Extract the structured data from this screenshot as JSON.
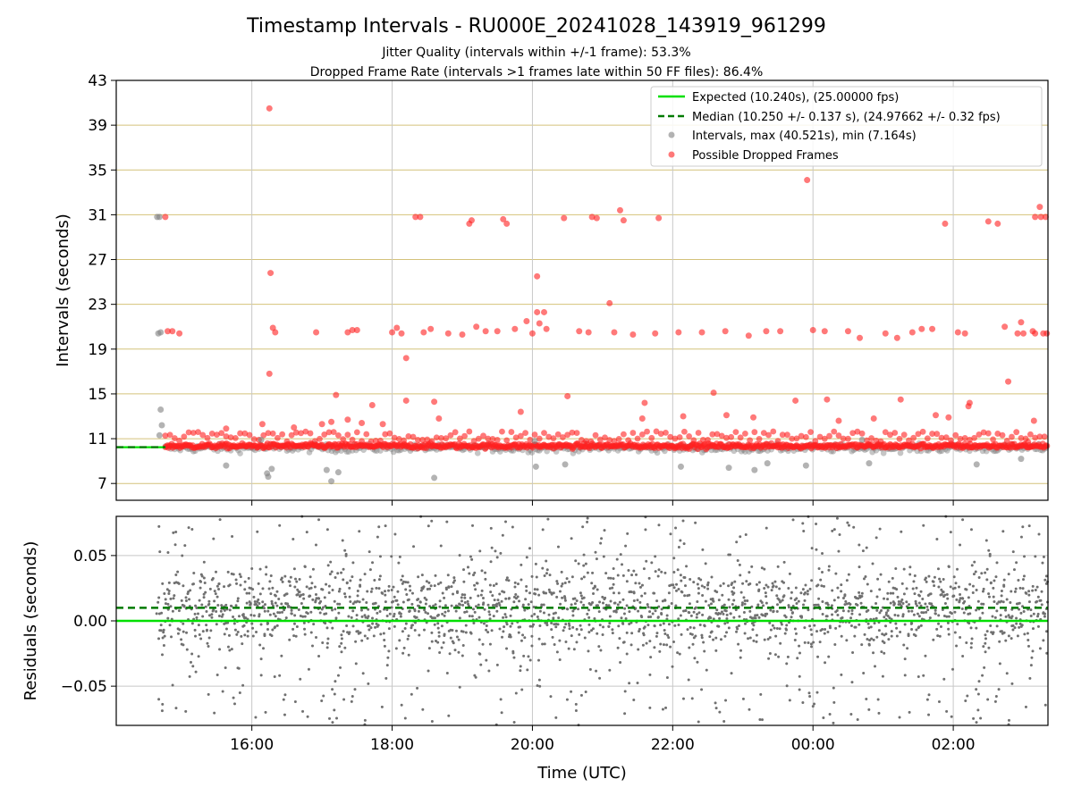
{
  "chart_data": {
    "type": "scatter",
    "title": "Timestamp Intervals - RU000E_20241028_143919_961299",
    "subtitle_lines": [
      "Jitter Quality (intervals within +/-1 frame): 53.3%",
      "Dropped Frame Rate (intervals >1 frames late within 50 FF files): 86.4%"
    ],
    "xlabel": "Time (UTC)",
    "x_range": [
      "2024-10-28 14:04",
      "2024-10-29 03:21"
    ],
    "x_ticks": [
      "16:00",
      "18:00",
      "20:00",
      "22:00",
      "00:00",
      "02:00"
    ],
    "x_tick_values": [
      "2024-10-28 16:00",
      "2024-10-28 18:00",
      "2024-10-28 20:00",
      "2024-10-28 22:00",
      "2024-10-29 00:00",
      "2024-10-29 02:00"
    ],
    "top_panel": {
      "ylabel": "Intervals (seconds)",
      "ylim": [
        5.5,
        43
      ],
      "y_ticks": [
        7,
        11,
        15,
        19,
        23,
        27,
        31,
        35,
        39,
        43
      ],
      "hlines": [
        {
          "y": 10.24,
          "style": "solid",
          "color": "#00e000"
        },
        {
          "y": 10.25,
          "style": "dashed",
          "color": "#007a00"
        }
      ],
      "legend_placement": "top-right",
      "legend": [
        {
          "label": "Expected (10.240s), (25.00000 fps)",
          "marker": "line",
          "color": "#00e000"
        },
        {
          "label": "Median (10.250 +/- 0.137 s), (24.97662 +/- 0.32 fps)",
          "marker": "dashed",
          "color": "#007a00"
        },
        {
          "label": "Intervals, max (40.521s), min (7.164s)",
          "marker": "dot",
          "color": "#808080"
        },
        {
          "label": "Possible Dropped Frames",
          "marker": "dot",
          "color": "#ff2020"
        }
      ],
      "series": [
        {
          "name": "Intervals, max (40.521s), min (7.164s)",
          "color": "#808080",
          "points": [
            [
              "2024-10-28 14:39",
              30.8
            ],
            [
              "2024-10-28 14:41",
              30.8
            ],
            [
              "2024-10-28 14:40",
              20.4
            ],
            [
              "2024-10-28 14:42",
              20.5
            ],
            [
              "2024-10-28 14:42",
              13.6
            ],
            [
              "2024-10-28 14:43",
              12.2
            ],
            [
              "2024-10-28 14:41",
              11.3
            ],
            [
              "2024-10-28 15:38",
              8.6
            ],
            [
              "2024-10-28 16:13",
              7.9
            ],
            [
              "2024-10-28 16:14",
              7.6
            ],
            [
              "2024-10-28 16:17",
              8.3
            ],
            [
              "2024-10-28 17:04",
              8.2
            ],
            [
              "2024-10-28 17:08",
              7.2
            ],
            [
              "2024-10-28 17:14",
              8.0
            ],
            [
              "2024-10-28 18:36",
              7.5
            ],
            [
              "2024-10-28 20:03",
              8.5
            ],
            [
              "2024-10-28 20:28",
              8.7
            ],
            [
              "2024-10-28 22:07",
              8.5
            ],
            [
              "2024-10-28 22:48",
              8.4
            ],
            [
              "2024-10-28 23:10",
              8.2
            ],
            [
              "2024-10-28 23:21",
              8.8
            ],
            [
              "2024-10-28 23:54",
              8.6
            ],
            [
              "2024-10-29 00:48",
              8.8
            ],
            [
              "2024-10-29 02:20",
              8.7
            ],
            [
              "2024-10-29 02:58",
              9.2
            ],
            [
              "2024-10-29 00:42",
              10.9
            ],
            [
              "2024-10-28 20:02",
              10.8
            ],
            [
              "2024-10-28 16:08",
              10.9
            ]
          ]
        },
        {
          "name": "Possible Dropped Frames",
          "color": "#ff2020",
          "points": [
            [
              "2024-10-28 14:46",
              30.8
            ],
            [
              "2024-10-28 14:48",
              20.6
            ],
            [
              "2024-10-28 14:52",
              20.6
            ],
            [
              "2024-10-28 14:58",
              20.4
            ],
            [
              "2024-10-28 16:15",
              40.5
            ],
            [
              "2024-10-28 16:16",
              25.8
            ],
            [
              "2024-10-28 16:18",
              20.9
            ],
            [
              "2024-10-28 16:20",
              20.5
            ],
            [
              "2024-10-28 16:15",
              16.8
            ],
            [
              "2024-10-28 16:09",
              12.3
            ],
            [
              "2024-10-28 16:36",
              12.0
            ],
            [
              "2024-10-28 15:38",
              11.9
            ],
            [
              "2024-10-28 16:55",
              20.5
            ],
            [
              "2024-10-28 17:22",
              20.5
            ],
            [
              "2024-10-28 17:26",
              20.7
            ],
            [
              "2024-10-28 17:30",
              20.7
            ],
            [
              "2024-10-28 17:12",
              14.9
            ],
            [
              "2024-10-28 17:08",
              12.5
            ],
            [
              "2024-10-28 17:00",
              12.3
            ],
            [
              "2024-10-28 17:22",
              12.7
            ],
            [
              "2024-10-28 17:34",
              12.4
            ],
            [
              "2024-10-28 17:43",
              14.0
            ],
            [
              "2024-10-28 17:52",
              12.3
            ],
            [
              "2024-10-28 18:00",
              20.5
            ],
            [
              "2024-10-28 18:04",
              20.9
            ],
            [
              "2024-10-28 18:08",
              20.4
            ],
            [
              "2024-10-28 18:12",
              18.2
            ],
            [
              "2024-10-28 18:12",
              14.4
            ],
            [
              "2024-10-28 18:20",
              30.8
            ],
            [
              "2024-10-28 18:24",
              30.8
            ],
            [
              "2024-10-28 18:27",
              20.5
            ],
            [
              "2024-10-28 18:33",
              20.8
            ],
            [
              "2024-10-28 18:36",
              14.3
            ],
            [
              "2024-10-28 18:40",
              12.8
            ],
            [
              "2024-10-28 18:48",
              20.4
            ],
            [
              "2024-10-28 19:00",
              20.3
            ],
            [
              "2024-10-28 19:12",
              21.0
            ],
            [
              "2024-10-28 19:06",
              30.2
            ],
            [
              "2024-10-28 19:08",
              30.5
            ],
            [
              "2024-10-28 19:20",
              20.6
            ],
            [
              "2024-10-28 19:30",
              20.6
            ],
            [
              "2024-10-28 19:35",
              30.6
            ],
            [
              "2024-10-28 19:38",
              30.2
            ],
            [
              "2024-10-28 19:45",
              20.8
            ],
            [
              "2024-10-28 19:50",
              13.4
            ],
            [
              "2024-10-28 19:55",
              21.5
            ],
            [
              "2024-10-28 20:00",
              20.4
            ],
            [
              "2024-10-28 20:04",
              25.5
            ],
            [
              "2024-10-28 20:04",
              22.3
            ],
            [
              "2024-10-28 20:10",
              22.3
            ],
            [
              "2024-10-28 20:06",
              21.3
            ],
            [
              "2024-10-28 20:12",
              20.8
            ],
            [
              "2024-10-28 20:27",
              30.7
            ],
            [
              "2024-10-28 20:30",
              14.8
            ],
            [
              "2024-10-28 20:40",
              20.6
            ],
            [
              "2024-10-28 20:48",
              20.5
            ],
            [
              "2024-10-28 20:51",
              30.8
            ],
            [
              "2024-10-28 20:55",
              30.7
            ],
            [
              "2024-10-28 21:06",
              23.1
            ],
            [
              "2024-10-28 21:15",
              31.4
            ],
            [
              "2024-10-28 21:18",
              30.5
            ],
            [
              "2024-10-28 21:10",
              20.5
            ],
            [
              "2024-10-28 21:26",
              20.3
            ],
            [
              "2024-10-28 21:34",
              12.8
            ],
            [
              "2024-10-28 21:36",
              14.2
            ],
            [
              "2024-10-28 21:45",
              20.4
            ],
            [
              "2024-10-28 21:48",
              30.7
            ],
            [
              "2024-10-28 22:05",
              20.5
            ],
            [
              "2024-10-28 22:09",
              13.0
            ],
            [
              "2024-10-28 22:25",
              20.5
            ],
            [
              "2024-10-28 22:35",
              15.1
            ],
            [
              "2024-10-28 22:45",
              20.6
            ],
            [
              "2024-10-28 22:46",
              13.1
            ],
            [
              "2024-10-28 23:05",
              20.2
            ],
            [
              "2024-10-28 23:09",
              12.9
            ],
            [
              "2024-10-28 23:20",
              20.6
            ],
            [
              "2024-10-28 23:32",
              20.6
            ],
            [
              "2024-10-28 23:45",
              14.4
            ],
            [
              "2024-10-28 23:55",
              34.1
            ],
            [
              "2024-10-29 00:00",
              20.7
            ],
            [
              "2024-10-29 00:10",
              20.6
            ],
            [
              "2024-10-29 00:12",
              14.5
            ],
            [
              "2024-10-29 00:22",
              12.6
            ],
            [
              "2024-10-29 00:30",
              20.6
            ],
            [
              "2024-10-29 00:40",
              20.0
            ],
            [
              "2024-10-29 00:52",
              12.8
            ],
            [
              "2024-10-29 01:02",
              20.4
            ],
            [
              "2024-10-29 01:12",
              20.0
            ],
            [
              "2024-10-29 01:15",
              14.5
            ],
            [
              "2024-10-29 01:25",
              20.5
            ],
            [
              "2024-10-29 01:33",
              20.8
            ],
            [
              "2024-10-29 01:42",
              20.8
            ],
            [
              "2024-10-29 01:45",
              13.1
            ],
            [
              "2024-10-29 01:53",
              30.2
            ],
            [
              "2024-10-29 01:56",
              12.9
            ],
            [
              "2024-10-29 02:04",
              20.5
            ],
            [
              "2024-10-29 02:10",
              20.4
            ],
            [
              "2024-10-29 02:13",
              13.9
            ],
            [
              "2024-10-29 02:14",
              14.2
            ],
            [
              "2024-10-29 02:30",
              30.4
            ],
            [
              "2024-10-29 02:38",
              30.2
            ],
            [
              "2024-10-29 02:44",
              21.0
            ],
            [
              "2024-10-29 02:47",
              16.1
            ],
            [
              "2024-10-29 02:55",
              20.4
            ],
            [
              "2024-10-29 02:58",
              21.4
            ],
            [
              "2024-10-29 03:00",
              20.4
            ],
            [
              "2024-10-29 03:08",
              20.6
            ],
            [
              "2024-10-29 03:10",
              30.8
            ],
            [
              "2024-10-29 03:14",
              31.7
            ],
            [
              "2024-10-29 03:15",
              30.8
            ],
            [
              "2024-10-29 03:19",
              30.8
            ],
            [
              "2024-10-29 03:20",
              20.4
            ],
            [
              "2024-10-29 03:09",
              12.6
            ],
            [
              "2024-10-29 03:04",
              10.7
            ],
            [
              "2024-10-29 03:10",
              20.4
            ],
            [
              "2024-10-29 03:17",
              20.4
            ]
          ]
        }
      ],
      "dense_band": {
        "description_values": {
          "center": 10.25,
          "spread": 0.137,
          "x_start": "2024-10-28 14:46",
          "x_end": "2024-10-29 03:21"
        }
      }
    },
    "bottom_panel": {
      "ylabel": "Residuals (seconds)",
      "ylim": [
        -0.08,
        0.08
      ],
      "y_ticks": [
        0.05,
        0.0,
        -0.05
      ],
      "y_tick_labels": [
        "0.05",
        "0.00",
        "−0.05"
      ],
      "hlines": [
        {
          "y": 0.0,
          "style": "solid",
          "color": "#00e000"
        },
        {
          "y": 0.01,
          "style": "dashed",
          "color": "#007a00"
        }
      ],
      "series": [
        {
          "name": "Residuals",
          "color": "#707070",
          "x_start": "2024-10-28 14:39",
          "x_end": "2024-10-29 03:21",
          "spread": 0.08
        }
      ]
    },
    "grid": true
  }
}
